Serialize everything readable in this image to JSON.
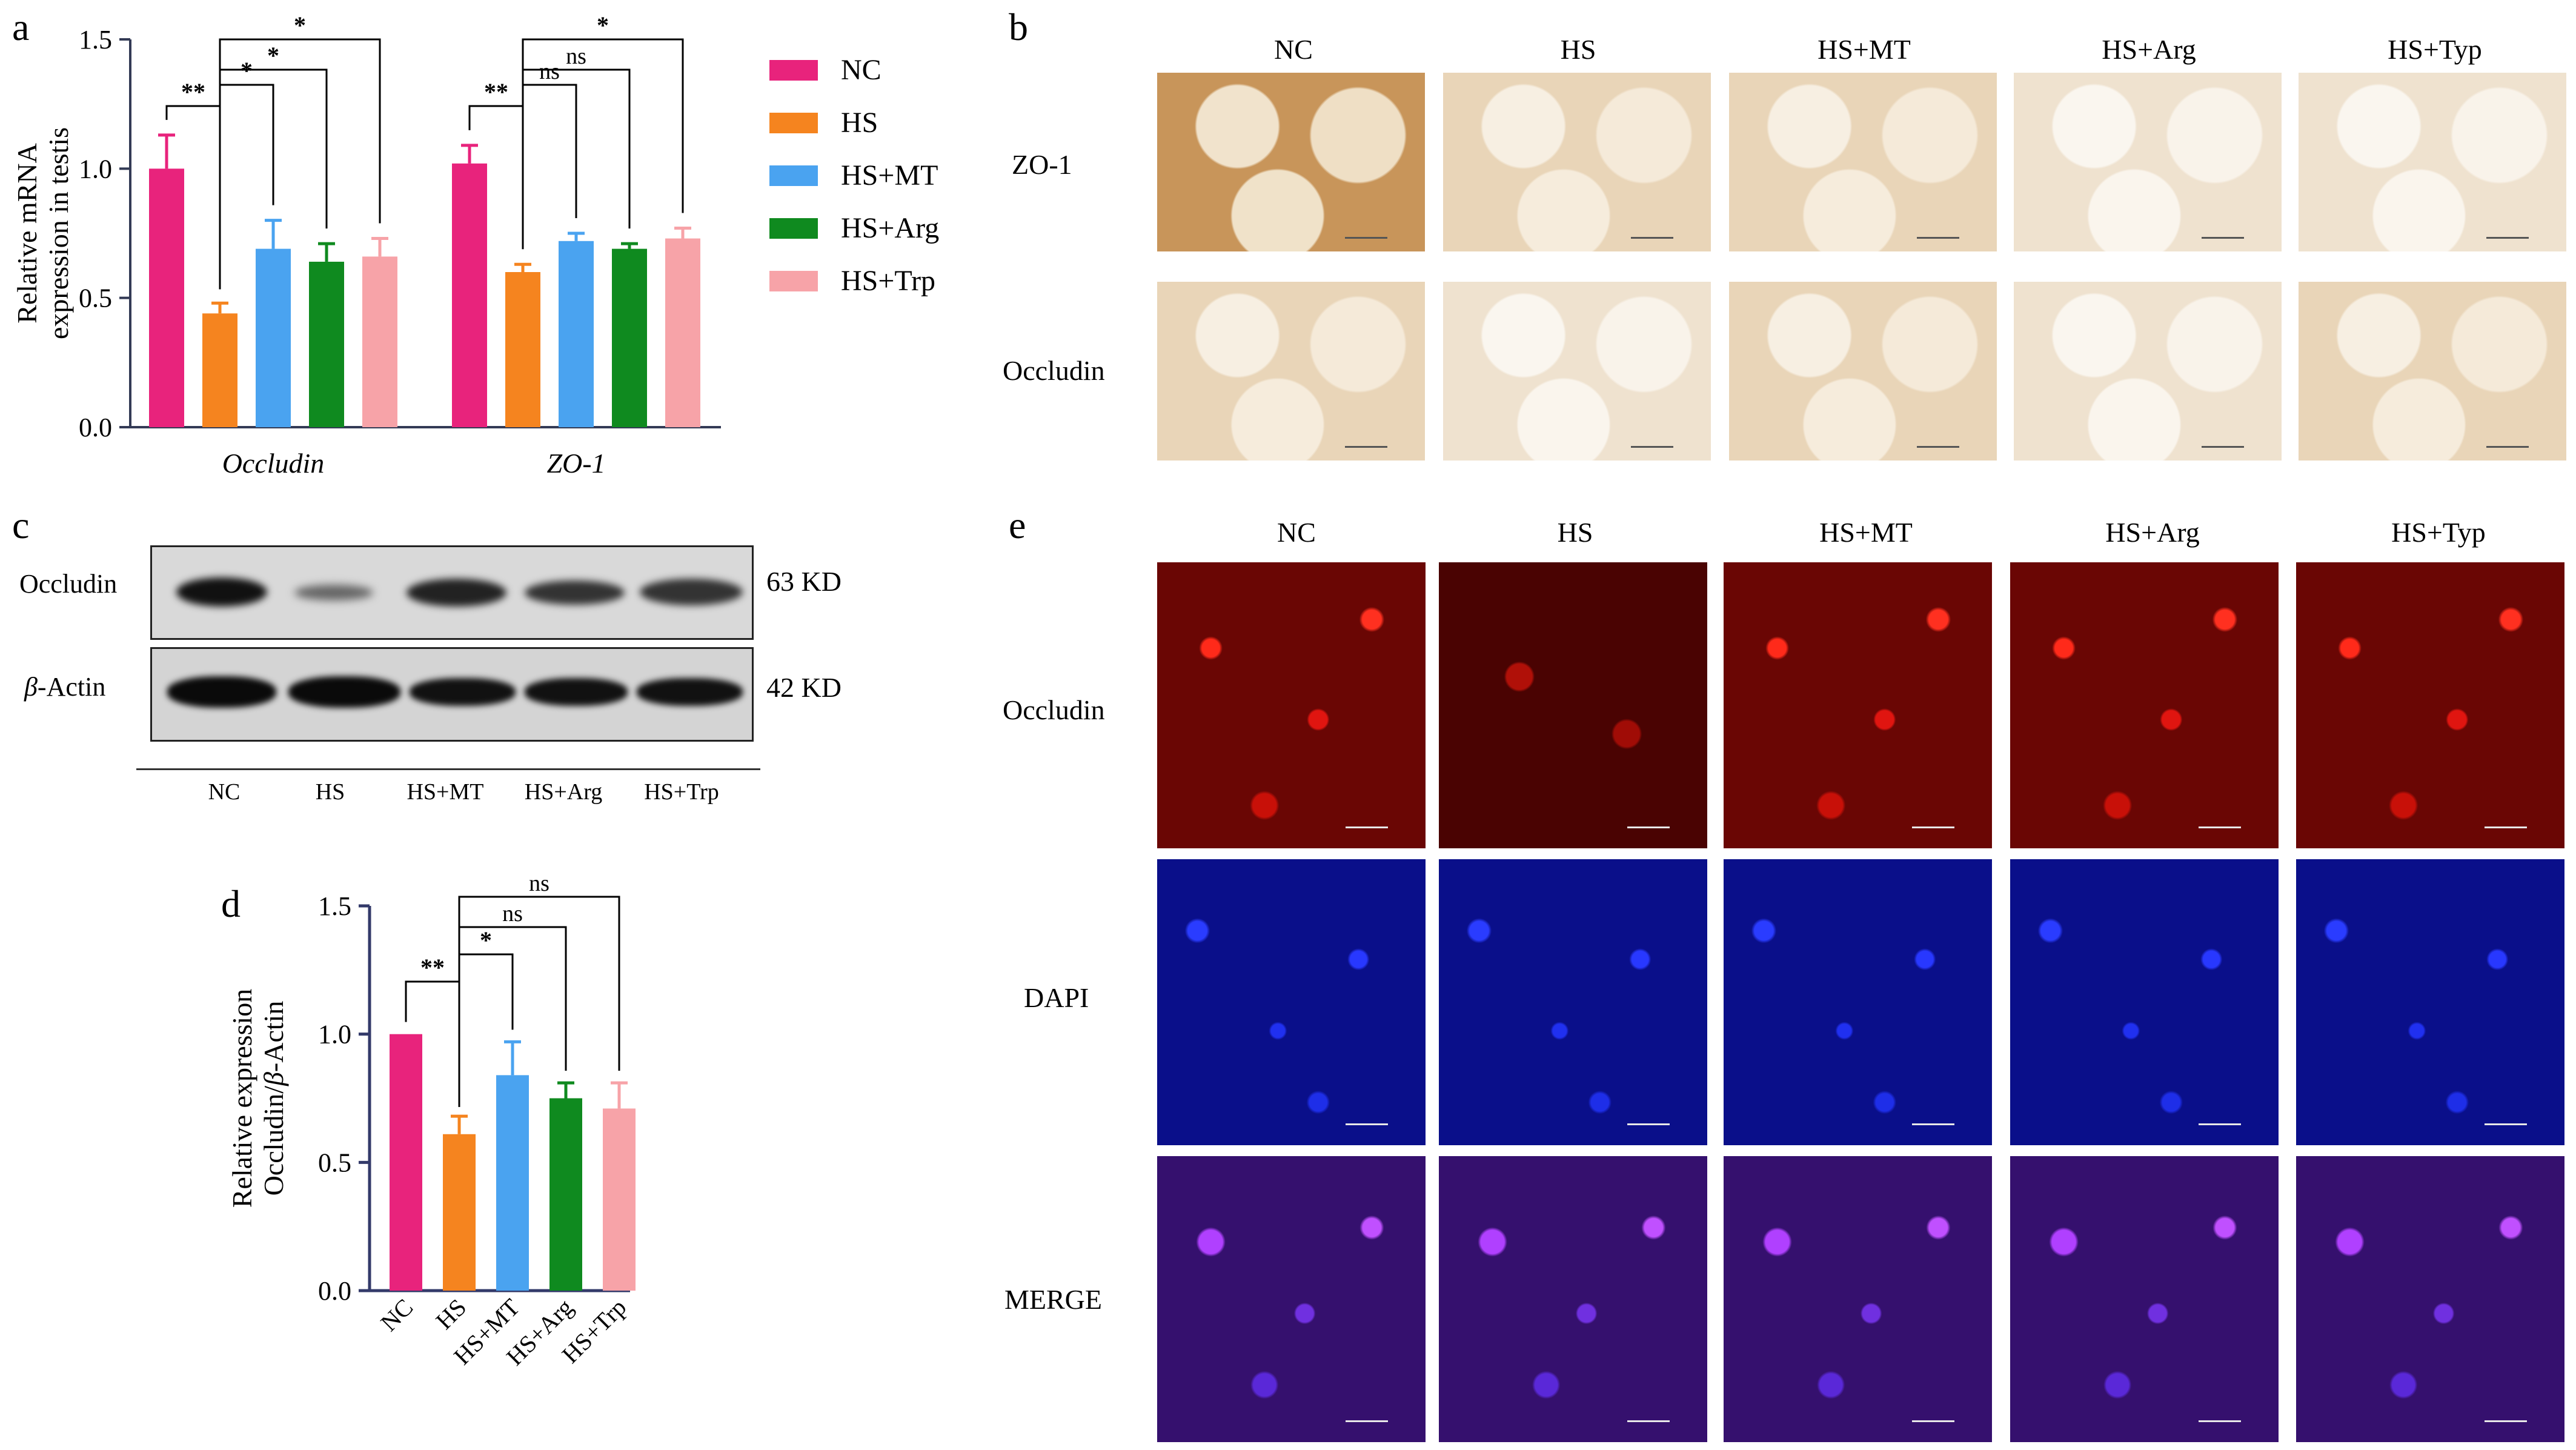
{
  "panels": {
    "a": "a",
    "b": "b",
    "c": "c",
    "d": "d",
    "e": "e"
  },
  "legend": {
    "items": [
      {
        "label": "NC",
        "color": "#e8237c"
      },
      {
        "label": "HS",
        "color": "#f5841f"
      },
      {
        "label": "HS+MT",
        "color": "#4aa3f0"
      },
      {
        "label": "HS+Arg",
        "color": "#0f8a1f"
      },
      {
        "label": "HS+Trp",
        "color": "#f7a3a8"
      }
    ]
  },
  "chart_data": [
    {
      "type": "bar",
      "panel": "a",
      "ylabel": "Relative mRNA expression in testis",
      "ylabel_lines": [
        "Relative mRNA",
        "expression in testis"
      ],
      "ylim": [
        0,
        1.5
      ],
      "yticks": [
        "0.0",
        "0.5",
        "1.0",
        "1.5"
      ],
      "groups": [
        "Occludin",
        "ZO-1"
      ],
      "series_order": [
        "NC",
        "HS",
        "HS+MT",
        "HS+Arg",
        "HS+Trp"
      ],
      "colors": [
        "#e8237c",
        "#f5841f",
        "#4aa3f0",
        "#0f8a1f",
        "#f7a3a8"
      ],
      "values": [
        [
          1.0,
          0.44,
          0.69,
          0.64,
          0.66
        ],
        [
          1.02,
          0.6,
          0.72,
          0.69,
          0.73
        ]
      ],
      "errors": [
        [
          0.13,
          0.04,
          0.11,
          0.07,
          0.07
        ],
        [
          0.07,
          0.03,
          0.03,
          0.02,
          0.04
        ]
      ],
      "significance": [
        {
          "group": 0,
          "from": 0,
          "to": 1,
          "label": "**"
        },
        {
          "group": 0,
          "from": 1,
          "to": 2,
          "label": "*"
        },
        {
          "group": 0,
          "from": 1,
          "to": 3,
          "label": "*"
        },
        {
          "group": 0,
          "from": 1,
          "to": 4,
          "label": "*"
        },
        {
          "group": 1,
          "from": 0,
          "to": 1,
          "label": "**"
        },
        {
          "group": 1,
          "from": 1,
          "to": 2,
          "label": "ns"
        },
        {
          "group": 1,
          "from": 1,
          "to": 3,
          "label": "ns"
        },
        {
          "group": 1,
          "from": 1,
          "to": 4,
          "label": "*"
        }
      ]
    },
    {
      "type": "bar",
      "panel": "d",
      "ylabel": "Relative expression Occludin/β-Actin",
      "ylabel_lines": [
        "Relative expression",
        "Occludin/",
        "β",
        "-Actin"
      ],
      "ylim": [
        0,
        1.5
      ],
      "yticks": [
        "0.0",
        "0.5",
        "1.0",
        "1.5"
      ],
      "categories": [
        "NC",
        "HS",
        "HS+MT",
        "HS+Arg",
        "HS+Trp"
      ],
      "colors": [
        "#e8237c",
        "#f5841f",
        "#4aa3f0",
        "#0f8a1f",
        "#f7a3a8"
      ],
      "values": [
        1.0,
        0.61,
        0.84,
        0.75,
        0.71
      ],
      "errors": [
        0.0,
        0.07,
        0.13,
        0.06,
        0.1
      ],
      "significance": [
        {
          "from": 0,
          "to": 1,
          "label": "**"
        },
        {
          "from": 1,
          "to": 2,
          "label": "*"
        },
        {
          "from": 1,
          "to": 3,
          "label": "ns"
        },
        {
          "from": 1,
          "to": 4,
          "label": "ns"
        }
      ]
    }
  ],
  "panel_b": {
    "columns": [
      "NC",
      "HS",
      "HS+MT",
      "HS+Arg",
      "HS+Typ"
    ],
    "rows": [
      "ZO-1",
      "Occludin"
    ]
  },
  "panel_c": {
    "rows": [
      {
        "label": "Occludin",
        "size": "63 KD"
      },
      {
        "label_prefix": "β",
        "label_suffix": "-Actin",
        "size": "42 KD"
      }
    ],
    "lanes": [
      "NC",
      "HS",
      "HS+MT",
      "HS+Arg",
      "HS+Trp"
    ]
  },
  "panel_e": {
    "columns": [
      "NC",
      "HS",
      "HS+MT",
      "HS+Arg",
      "HS+Typ"
    ],
    "rows": [
      "Occludin",
      "DAPI",
      "MERGE"
    ]
  }
}
